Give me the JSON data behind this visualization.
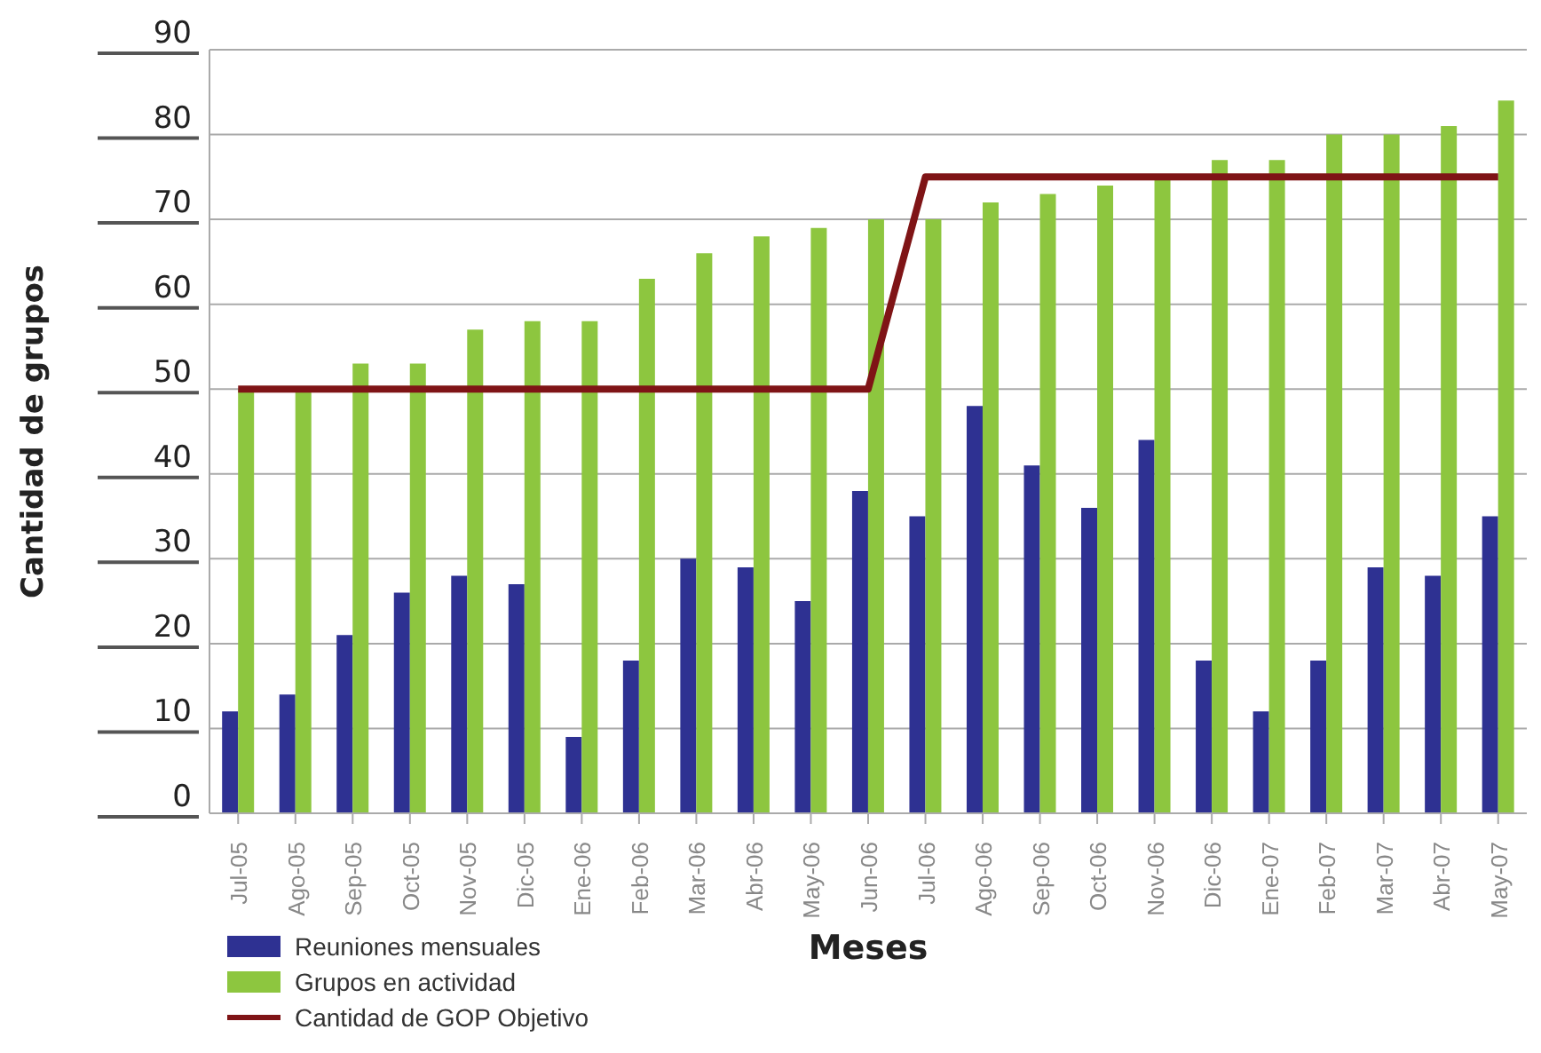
{
  "chart_data": {
    "type": "bar",
    "xlabel": "Meses",
    "ylabel": "Cantidad de grupos",
    "categories": [
      "Jul-05",
      "Ago-05",
      "Sep-05",
      "Oct-05",
      "Nov-05",
      "Dic-05",
      "Ene-06",
      "Feb-06",
      "Mar-06",
      "Abr-06",
      "May-06",
      "Jun-06",
      "Jul-06",
      "Ago-06",
      "Sep-06",
      "Oct-06",
      "Nov-06",
      "Dic-06",
      "Ene-07",
      "Feb-07",
      "Mar-07",
      "Abr-07",
      "May-07"
    ],
    "series": [
      {
        "name": "Reuniones mensuales",
        "color": "#2e3192",
        "values": [
          12,
          14,
          21,
          26,
          28,
          27,
          9,
          18,
          30,
          29,
          25,
          38,
          35,
          48,
          41,
          36,
          44,
          18,
          12,
          18,
          29,
          28,
          35
        ]
      },
      {
        "name": "Grupos en actividad",
        "color": "#8dc63f",
        "values": [
          50,
          50,
          53,
          53,
          57,
          58,
          58,
          63,
          66,
          68,
          69,
          70,
          70,
          72,
          73,
          74,
          75,
          77,
          77,
          80,
          80,
          81,
          84
        ]
      },
      {
        "name": "Cantidad de GOP Objetivo",
        "type": "line",
        "color": "#7f1416",
        "values": [
          50,
          50,
          50,
          50,
          50,
          50,
          50,
          50,
          50,
          50,
          50,
          50,
          75,
          75,
          75,
          75,
          75,
          75,
          75,
          75,
          75,
          75,
          75
        ]
      }
    ],
    "ylim": [
      0,
      90
    ],
    "yticks": [
      0,
      10,
      20,
      30,
      40,
      50,
      60,
      70,
      80,
      90
    ],
    "grid": "y",
    "legend": "bottom left",
    "line_style": "solid"
  }
}
